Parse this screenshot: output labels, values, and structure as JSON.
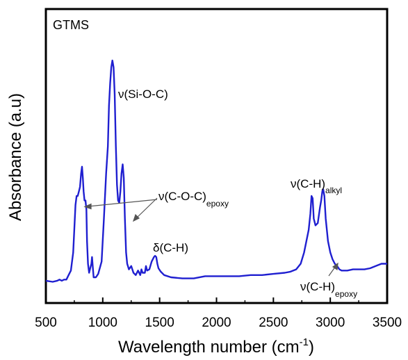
{
  "chart_data": {
    "type": "line",
    "panel_label": "GTMS",
    "xlabel_prefix": "Wavelength number (cm",
    "xlabel_sup": "-1",
    "xlabel_suffix": ")",
    "ylabel": "Absorbance (a.u)",
    "xlim": [
      500,
      3500
    ],
    "ylim": [
      0,
      1.0
    ],
    "x_ticks": [
      500,
      1000,
      1500,
      2000,
      2500,
      3000,
      3500
    ],
    "y_ticks_labeled": false,
    "grid": false,
    "series": [
      {
        "color": "#1f1fd0",
        "x": [
          500,
          560,
          600,
          620,
          640,
          660,
          680,
          700,
          720,
          740,
          760,
          770,
          780,
          790,
          800,
          810,
          818,
          825,
          832,
          840,
          848,
          856,
          862,
          870,
          880,
          890,
          900,
          906,
          912,
          920,
          940,
          960,
          990,
          1010,
          1030,
          1045,
          1055,
          1065,
          1075,
          1085,
          1095,
          1105,
          1115,
          1125,
          1135,
          1145,
          1155,
          1165,
          1175,
          1185,
          1195,
          1205,
          1215,
          1230,
          1250,
          1260,
          1270,
          1290,
          1310,
          1330,
          1340,
          1350,
          1370,
          1380,
          1390,
          1410,
          1430,
          1450,
          1460,
          1470,
          1480,
          1490,
          1510,
          1540,
          1600,
          1700,
          1800,
          1900,
          2000,
          2100,
          2200,
          2300,
          2400,
          2500,
          2600,
          2650,
          2700,
          2740,
          2770,
          2790,
          2810,
          2825,
          2835,
          2845,
          2855,
          2870,
          2890,
          2910,
          2920,
          2930,
          2938,
          2948,
          2960,
          2980,
          3000,
          3020,
          3040,
          3060,
          3080,
          3100,
          3150,
          3200,
          3300,
          3350,
          3400,
          3450,
          3500
        ],
        "y": [
          0.025,
          0.02,
          0.025,
          0.03,
          0.025,
          0.03,
          0.03,
          0.05,
          0.07,
          0.15,
          0.36,
          0.4,
          0.4,
          0.42,
          0.44,
          0.5,
          0.53,
          0.48,
          0.42,
          0.38,
          0.38,
          0.34,
          0.2,
          0.1,
          0.06,
          0.08,
          0.1,
          0.13,
          0.09,
          0.04,
          0.04,
          0.055,
          0.11,
          0.3,
          0.5,
          0.62,
          0.8,
          0.9,
          0.97,
          1.0,
          0.97,
          0.85,
          0.62,
          0.45,
          0.38,
          0.37,
          0.42,
          0.5,
          0.54,
          0.48,
          0.3,
          0.15,
          0.1,
          0.075,
          0.09,
          0.075,
          0.06,
          0.05,
          0.07,
          0.05,
          0.075,
          0.06,
          0.06,
          0.09,
          0.07,
          0.075,
          0.11,
          0.13,
          0.135,
          0.13,
          0.1,
          0.08,
          0.065,
          0.05,
          0.04,
          0.035,
          0.035,
          0.045,
          0.045,
          0.045,
          0.045,
          0.05,
          0.05,
          0.055,
          0.06,
          0.065,
          0.075,
          0.1,
          0.15,
          0.2,
          0.25,
          0.32,
          0.4,
          0.39,
          0.3,
          0.27,
          0.28,
          0.35,
          0.38,
          0.42,
          0.43,
          0.4,
          0.3,
          0.2,
          0.15,
          0.12,
          0.1,
          0.09,
          0.075,
          0.07,
          0.07,
          0.075,
          0.075,
          0.08,
          0.09,
          0.1,
          0.1
        ]
      }
    ],
    "annotations": [
      {
        "main": "ν(Si-O-C)",
        "sub": ""
      },
      {
        "main": "ν(C-O-C)",
        "sub": "epoxy"
      },
      {
        "main": "δ(C-H)",
        "sub": ""
      },
      {
        "main": "ν(C-H)",
        "sub": "alkyl"
      },
      {
        "main": "ν(C-H)",
        "sub": "epoxy"
      }
    ]
  }
}
